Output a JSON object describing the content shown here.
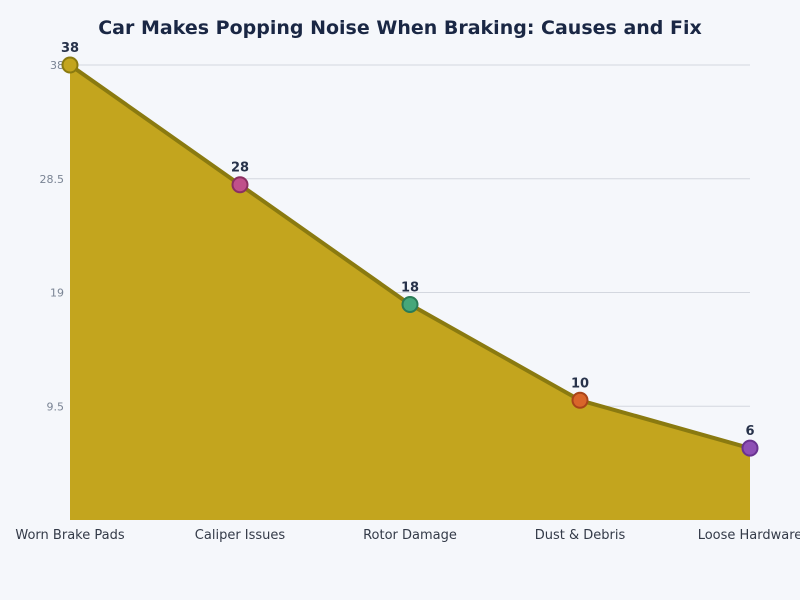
{
  "chart_data": {
    "type": "area",
    "title": "Car Makes Popping Noise When Braking: Causes and Fix",
    "xlabel": "",
    "ylabel": "",
    "categories": [
      "Worn Brake Pads",
      "Caliper Issues",
      "Rotor Damage",
      "Dust & Debris",
      "Loose Hardware"
    ],
    "values": [
      38,
      28,
      18,
      10,
      6
    ],
    "data_labels": [
      "38",
      "28",
      "18",
      "10",
      "6"
    ],
    "ylim": [
      0,
      38
    ],
    "yticks": [
      9.5,
      19,
      28.5,
      38
    ],
    "ytick_labels": [
      "9.5",
      "19",
      "28.5",
      "38"
    ],
    "grid": true,
    "legend": "none",
    "colors": {
      "area_fill": "#c3a51e",
      "line": "#8a7a10",
      "markers": [
        "#c3a51e",
        "#c0508a",
        "#45a77a",
        "#d9652a",
        "#8e4fb5"
      ],
      "marker_strokes": [
        "#8a7a10",
        "#8a2f60",
        "#2a7a55",
        "#a8441a",
        "#6a3390"
      ]
    }
  }
}
